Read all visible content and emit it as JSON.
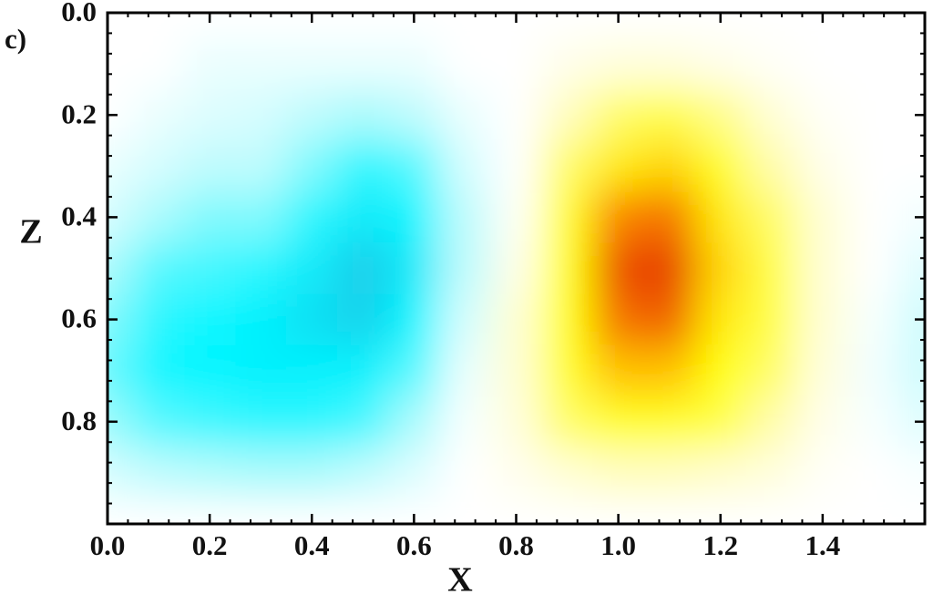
{
  "chart_data": {
    "type": "heatmap",
    "panel_label": "c)",
    "x_label": "X",
    "y_label": "Z",
    "x": [
      0,
      0.1,
      0.2,
      0.3,
      0.4,
      0.5,
      0.6,
      0.7,
      0.8,
      0.9,
      1.0,
      1.1,
      1.2,
      1.3,
      1.4,
      1.5,
      1.6
    ],
    "z": [
      0,
      0.1,
      0.2,
      0.3,
      0.4,
      0.5,
      0.6,
      0.7,
      0.8,
      0.9,
      1.0
    ],
    "values": [
      [
        0,
        0,
        0,
        0,
        0,
        0,
        0,
        0,
        0,
        0,
        0,
        0,
        0,
        0,
        0,
        0,
        0
      ],
      [
        0,
        0,
        -0.05,
        -0.05,
        -0.05,
        -0.05,
        -0.05,
        0,
        0,
        0.05,
        0.08,
        0.08,
        0.05,
        0.02,
        0,
        0,
        0
      ],
      [
        0,
        -0.05,
        -0.08,
        -0.1,
        -0.15,
        -0.2,
        -0.15,
        -0.05,
        0,
        0.15,
        0.3,
        0.35,
        0.25,
        0.1,
        0.02,
        0,
        0
      ],
      [
        -0.05,
        -0.1,
        -0.15,
        -0.15,
        -0.25,
        -0.35,
        -0.3,
        -0.1,
        0,
        0.3,
        0.5,
        0.55,
        0.4,
        0.2,
        0.05,
        0,
        0
      ],
      [
        -0.1,
        -0.2,
        -0.25,
        -0.25,
        -0.35,
        -0.45,
        -0.4,
        -0.15,
        0.02,
        0.4,
        0.75,
        0.8,
        0.5,
        0.3,
        0.1,
        0,
        -0.03
      ],
      [
        -0.2,
        -0.3,
        -0.32,
        -0.35,
        -0.45,
        -0.58,
        -0.45,
        -0.15,
        0.05,
        0.45,
        0.9,
        0.95,
        0.55,
        0.35,
        0.1,
        0,
        -0.08
      ],
      [
        -0.25,
        -0.35,
        -0.38,
        -0.42,
        -0.5,
        -0.55,
        -0.4,
        -0.1,
        0.1,
        0.45,
        0.8,
        0.85,
        0.5,
        0.35,
        0.1,
        -0.02,
        -0.12
      ],
      [
        -0.28,
        -0.38,
        -0.4,
        -0.42,
        -0.42,
        -0.42,
        -0.3,
        -0.05,
        0.1,
        0.4,
        0.6,
        0.6,
        0.45,
        0.3,
        0.08,
        -0.03,
        -0.12
      ],
      [
        -0.22,
        -0.3,
        -0.33,
        -0.35,
        -0.35,
        -0.32,
        -0.2,
        -0.02,
        0.08,
        0.3,
        0.4,
        0.4,
        0.35,
        0.2,
        0.05,
        -0.02,
        -0.08
      ],
      [
        -0.1,
        -0.15,
        -0.18,
        -0.2,
        -0.2,
        -0.15,
        -0.08,
        0,
        0.04,
        0.1,
        0.15,
        0.15,
        0.12,
        0.08,
        0.02,
        0,
        -0.02
      ],
      [
        0,
        0,
        0,
        0,
        0,
        0,
        0,
        0,
        0,
        0,
        0,
        0,
        0,
        0,
        0,
        0,
        0
      ]
    ],
    "xlim": [
      0,
      1.6
    ],
    "ylim": [
      1,
      0
    ],
    "xticks": [
      {
        "value": 0,
        "label": "0.0"
      },
      0.2,
      0.4,
      0.6,
      0.8,
      {
        "value": 1,
        "label": "1.0"
      },
      1.2,
      1.4
    ],
    "yticks": [
      {
        "value": 0,
        "label": "0.0"
      },
      0.2,
      0.4,
      0.6,
      0.8
    ]
  }
}
